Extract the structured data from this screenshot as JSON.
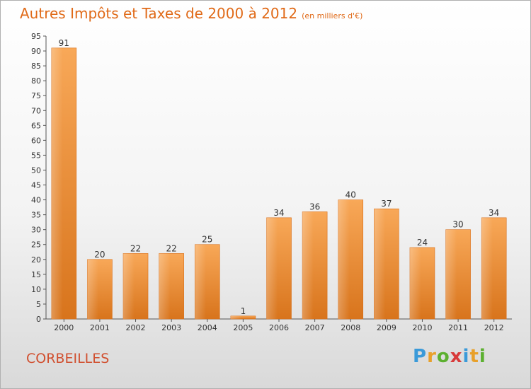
{
  "title": "Autres Impôts et Taxes de 2000 à 2012",
  "unit": "(en milliers d'€)",
  "place": "CORBEILLES",
  "logo": {
    "letters": [
      "P",
      "r",
      "o",
      "x",
      "i",
      "t",
      "i"
    ],
    "colors": [
      "#3a9ad9",
      "#e8a02a",
      "#5cb030",
      "#d83a3a",
      "#3a9ad9",
      "#e8a02a",
      "#5cb030"
    ]
  },
  "chart_data": {
    "type": "bar",
    "categories": [
      "2000",
      "2001",
      "2002",
      "2003",
      "2004",
      "2005",
      "2006",
      "2007",
      "2008",
      "2009",
      "2010",
      "2011",
      "2012"
    ],
    "values": [
      91,
      20,
      22,
      22,
      25,
      1,
      34,
      36,
      40,
      37,
      24,
      30,
      34
    ],
    "data_labels": [
      "91",
      "20",
      "22",
      "22",
      "25",
      "1",
      "34",
      "36",
      "40",
      "37",
      "24",
      "30",
      "34"
    ],
    "ylim": [
      0,
      95
    ],
    "yticks": [
      0,
      5,
      10,
      15,
      20,
      25,
      30,
      35,
      40,
      45,
      50,
      55,
      60,
      65,
      70,
      75,
      80,
      85,
      90,
      95
    ],
    "grid": false,
    "bar_color": "#f08a2a"
  }
}
